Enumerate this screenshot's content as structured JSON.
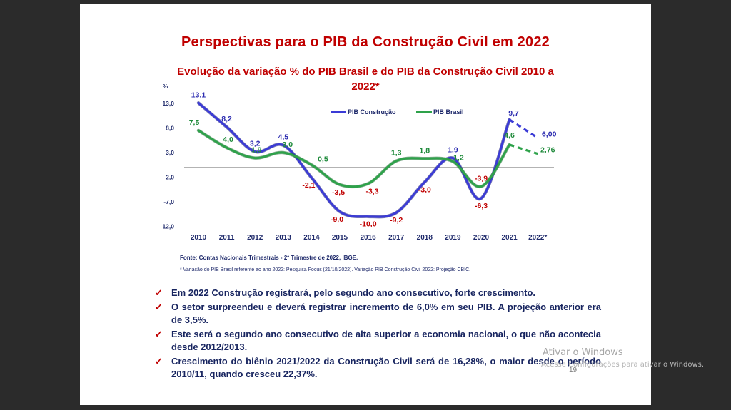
{
  "slide": {
    "title": "Perspectivas para o PIB da Construção Civil em 2022",
    "source": "Fonte: Contas Nacionais Trimestrais - 2º Trimestre de 2022, IBGE.",
    "note": "* Variação do PIB Brasil referente ao ano 2022: Pesquisa Focus (21/10/2022). Variação PIB Construção Civil 2022: Projeção CBIC.",
    "bullets": [
      "Em 2022 Construção registrará, pelo segundo ano consecutivo, forte crescimento.",
      "O setor surpreendeu e deverá registrar incremento de 6,0% em seu PIB. A projeção anterior era de 3,5%.",
      "Este será o segundo ano consecutivo de alta superior a economia nacional, o que não acontecia desde 2012/2013.",
      "Crescimento do biênio 2021/2022 da Construção Civil será de 16,28%, o maior desde o período 2010/11, quando cresceu 22,37%."
    ],
    "check_glyph": "✓",
    "page_number": "19"
  },
  "watermark": {
    "line1": "Ativar o Windows",
    "line2": "Acesse Configurações para ativar o Windows."
  },
  "colors": {
    "title": "#c00000",
    "construcao": "#3b3bd6",
    "brasil": "#2ea24a",
    "neg_label": "#c00000",
    "pos_label_construcao": "#2c2cb0",
    "pos_label_brasil": "#1e8a3a"
  },
  "chart_data": {
    "type": "line",
    "title": "Evolução da variação % do PIB Brasil e do PIB da Construção Civil 2010 a 2022*",
    "ylabel": "%",
    "xlabel": "",
    "categories": [
      "2010",
      "2011",
      "2012",
      "2013",
      "2014",
      "2015",
      "2016",
      "2017",
      "2018",
      "2019",
      "2020",
      "2021",
      "2022*"
    ],
    "yticks": [
      "13,0",
      "8,0",
      "3,0",
      "-2,0",
      "-7,0",
      "-12,0"
    ],
    "ylim": [
      -12,
      13
    ],
    "grid": false,
    "legend_position": "top",
    "projection_from_index": 11,
    "series": [
      {
        "name": "PIB Construção",
        "values": [
          13.1,
          8.2,
          3.2,
          4.5,
          -2.1,
          -9.0,
          -10.0,
          -9.2,
          -3.0,
          1.9,
          -6.3,
          9.7,
          6.0
        ],
        "labels": [
          "13,1",
          "8,2",
          "3,2",
          "4,5",
          "-2,1",
          "-9,0",
          "-10,0",
          "-9,2",
          "-3,0",
          "1,9",
          "-6,3",
          "9,7",
          "6,00"
        ]
      },
      {
        "name": "PIB Brasil",
        "values": [
          7.5,
          4.0,
          1.9,
          3.0,
          0.5,
          -3.5,
          -3.3,
          1.3,
          1.8,
          1.2,
          -3.9,
          4.6,
          2.76
        ],
        "labels": [
          "7,5",
          "4,0",
          "1,9",
          "3,0",
          "0,5",
          "-3,5",
          "-3,3",
          "1,3",
          "1,8",
          "1,2",
          "-3,9",
          "4,6",
          "2,76"
        ]
      }
    ]
  }
}
